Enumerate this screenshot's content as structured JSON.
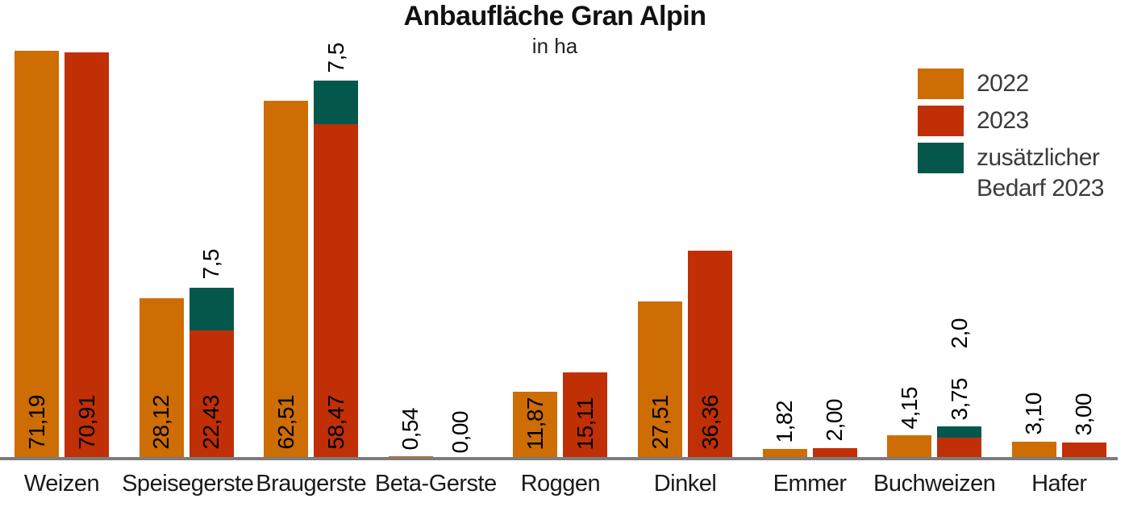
{
  "title": "Anbaufläche Gran Alpin",
  "subtitle": "in ha",
  "legend": [
    {
      "label": "2022",
      "color": "#cd6d04"
    },
    {
      "label": "2023",
      "color": "#c02f06"
    },
    {
      "label": "zusätzlicher Bedarf 2023",
      "color": "#03584b"
    }
  ],
  "colors": {
    "bar_2022": "#cd6d04",
    "bar_2023": "#c02f06",
    "bar_extra": "#03584b",
    "axis": "#7c7c7c"
  },
  "chart_data": {
    "type": "bar",
    "title": "Anbaufläche Gran Alpin",
    "subtitle": "in ha",
    "unit": "ha",
    "categories": [
      "Weizen",
      "Speisegerste",
      "Braugerste",
      "Beta-Gerste",
      "Roggen",
      "Dinkel",
      "Emmer",
      "Buchweizen",
      "Hafer"
    ],
    "series": [
      {
        "name": "2022",
        "color": "#cd6d04",
        "values": [
          71.19,
          28.12,
          62.51,
          0.54,
          11.87,
          27.51,
          1.82,
          4.15,
          3.1
        ],
        "labels": [
          "71,19",
          "28,12",
          "62,51",
          "0,54",
          "11,87",
          "27,51",
          "1,82",
          "4,15",
          "3,10"
        ]
      },
      {
        "name": "2023",
        "color": "#c02f06",
        "values": [
          70.91,
          22.43,
          58.47,
          0.0,
          15.11,
          36.36,
          2.0,
          3.75,
          3.0
        ],
        "labels": [
          "70,91",
          "22,43",
          "58,47",
          "0,00",
          "15,11",
          "36,36",
          "2,00",
          "3,75",
          "3,00"
        ]
      },
      {
        "name": "zusätzlicher Bedarf 2023",
        "color": "#03584b",
        "stacked_on": "2023",
        "values": [
          0,
          7.5,
          7.5,
          0,
          0,
          0,
          0,
          2.0,
          0
        ],
        "labels": [
          null,
          "7,5",
          "7,5",
          null,
          null,
          null,
          null,
          "2,0",
          null
        ]
      }
    ],
    "y_axis_visible": false,
    "grid": false,
    "value_labels": "rotated-90",
    "decimal_style": "comma",
    "legend_position": "top-right",
    "ylim": [
      0,
      75
    ]
  }
}
